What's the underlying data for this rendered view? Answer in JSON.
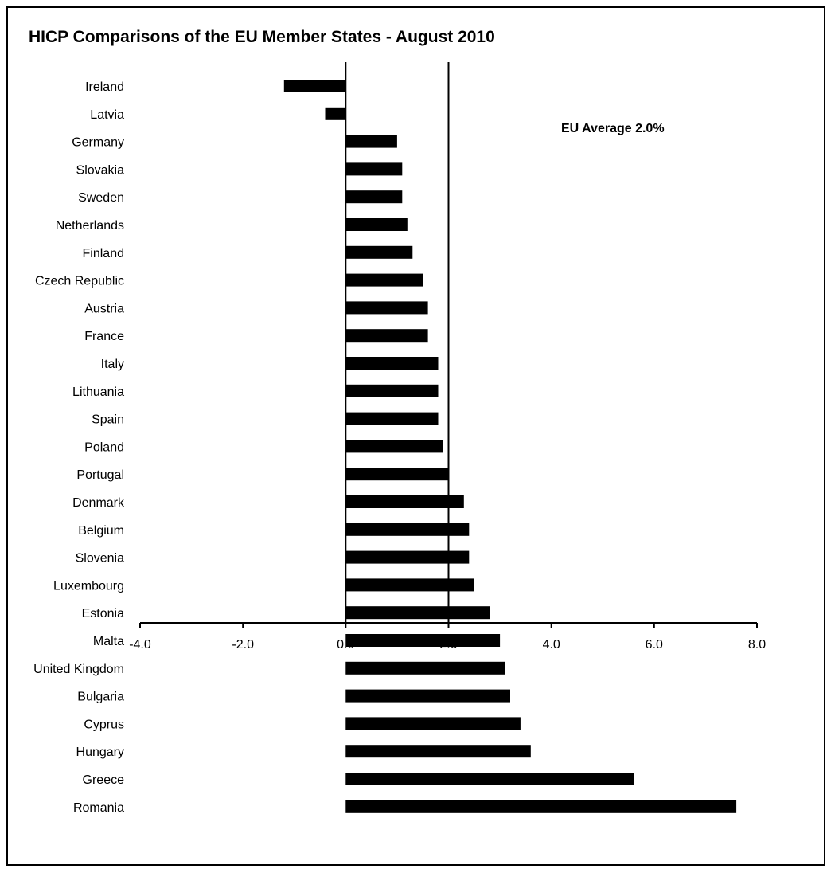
{
  "chart_data": {
    "type": "bar",
    "orientation": "horizontal",
    "title": "HICP Comparisons of the EU Member States - August 2010",
    "annotation": "EU Average  2.0%",
    "reference_line": 2.0,
    "categories": [
      "Ireland",
      "Latvia",
      "Germany",
      "Slovakia",
      "Sweden",
      "Netherlands",
      "Finland",
      "Czech Republic",
      "Austria",
      "France",
      "Italy",
      "Lithuania",
      "Spain",
      "Poland",
      "Portugal",
      "Denmark",
      "Belgium",
      "Slovenia",
      "Luxembourg",
      "Estonia",
      "Malta",
      "United Kingdom",
      "Bulgaria",
      "Cyprus",
      "Hungary",
      "Greece",
      "Romania"
    ],
    "values": [
      -1.2,
      -0.4,
      1.0,
      1.1,
      1.1,
      1.2,
      1.3,
      1.5,
      1.6,
      1.6,
      1.8,
      1.8,
      1.8,
      1.9,
      2.0,
      2.3,
      2.4,
      2.4,
      2.5,
      2.8,
      3.0,
      3.1,
      3.2,
      3.4,
      3.6,
      5.6,
      7.6
    ],
    "xlim": [
      -4,
      8
    ],
    "xticks": [
      "-4.0",
      "-2.0",
      "0.0",
      "2.0",
      "4.0",
      "6.0",
      "8.0"
    ],
    "xlabel": "",
    "ylabel": "",
    "grid": false,
    "legend": false,
    "bar_color": "#000000"
  }
}
